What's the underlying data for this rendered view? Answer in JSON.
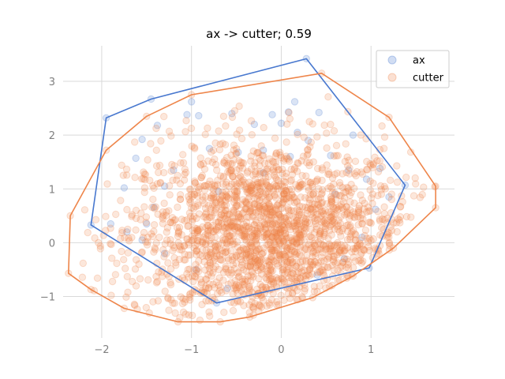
{
  "chart_data": {
    "type": "scatter",
    "title": "ax -> cutter; 0.59",
    "xlabel": "",
    "ylabel": "",
    "xlim": [
      -2.43,
      1.93
    ],
    "ylim": [
      -1.77,
      3.66
    ],
    "x_ticks": [
      -2,
      -1,
      0,
      1
    ],
    "y_ticks": [
      -1,
      0,
      1,
      2,
      3
    ],
    "x_tick_labels": [
      "−2",
      "−1",
      "0",
      "1"
    ],
    "y_tick_labels": [
      "−1",
      "0",
      "1",
      "2",
      "3"
    ],
    "grid": true,
    "legend_position": "top-right",
    "series": [
      {
        "name": "ax",
        "color": "#4878cf",
        "point_alpha": 0.2,
        "hull": [
          [
            -2.12,
            0.33
          ],
          [
            -1.95,
            2.32
          ],
          [
            -1.45,
            2.67
          ],
          [
            0.28,
            3.42
          ],
          [
            1.38,
            1.07
          ],
          [
            0.98,
            -0.47
          ],
          [
            -0.72,
            -1.12
          ]
        ],
        "points": [
          [
            -1.95,
            2.32
          ],
          [
            -1.45,
            2.67
          ],
          [
            0.28,
            3.42
          ],
          [
            1.38,
            1.07
          ],
          [
            0.98,
            -0.47
          ],
          [
            -2.12,
            0.33
          ],
          [
            -0.72,
            -1.12
          ],
          [
            -1.0,
            2.62
          ],
          [
            0.15,
            2.62
          ],
          [
            0.42,
            2.42
          ],
          [
            0.08,
            2.43
          ],
          [
            -1.38,
            2.18
          ],
          [
            -1.55,
            1.92
          ],
          [
            -1.05,
            2.38
          ],
          [
            -0.92,
            2.36
          ],
          [
            -0.1,
            2.38
          ],
          [
            0.0,
            2.22
          ],
          [
            0.18,
            2.05
          ],
          [
            -1.62,
            1.57
          ],
          [
            -1.75,
            1.02
          ],
          [
            -1.42,
            0.66
          ],
          [
            -1.2,
            1.35
          ],
          [
            -0.48,
            1.68
          ],
          [
            0.3,
            1.9
          ],
          [
            0.55,
            1.62
          ],
          [
            0.75,
            1.35
          ],
          [
            0.95,
            1.18
          ],
          [
            1.2,
            0.85
          ],
          [
            1.05,
            0.62
          ],
          [
            -0.3,
            2.2
          ],
          [
            -0.55,
            2.4
          ],
          [
            -1.9,
            0.35
          ],
          [
            -1.72,
            0.2
          ],
          [
            -1.55,
            0.05
          ],
          [
            -1.3,
            -0.2
          ],
          [
            -0.95,
            -0.5
          ],
          [
            -0.6,
            -0.85
          ],
          [
            0.4,
            -0.6
          ],
          [
            0.7,
            -0.3
          ],
          [
            0.9,
            0.1
          ],
          [
            1.1,
            1.38
          ],
          [
            -0.8,
            1.75
          ],
          [
            -0.2,
            1.3
          ],
          [
            0.1,
            1.6
          ],
          [
            -1.3,
            1.05
          ],
          [
            0.6,
            0.9
          ],
          [
            -0.2,
            1.72
          ],
          [
            0.8,
            2.0
          ],
          [
            -1.5,
            0.35
          ],
          [
            -0.7,
            0.95
          ]
        ]
      },
      {
        "name": "cutter",
        "color": "#ee854a",
        "point_alpha": 0.2,
        "hull": [
          [
            -2.35,
            0.5
          ],
          [
            -2.37,
            -0.57
          ],
          [
            -2.12,
            -0.87
          ],
          [
            -1.75,
            -1.22
          ],
          [
            -1.15,
            -1.47
          ],
          [
            -0.68,
            -1.47
          ],
          [
            -0.35,
            -1.38
          ],
          [
            0.35,
            -1.02
          ],
          [
            0.8,
            -0.62
          ],
          [
            1.25,
            -0.1
          ],
          [
            1.72,
            0.65
          ],
          [
            1.72,
            1.05
          ],
          [
            1.2,
            2.33
          ],
          [
            0.45,
            3.15
          ],
          [
            -1.0,
            2.75
          ],
          [
            -1.5,
            2.35
          ],
          [
            -1.95,
            1.72
          ]
        ],
        "point_count": 2000,
        "center": [
          -0.15,
          0.15
        ],
        "spread": [
          0.78,
          0.88
        ],
        "extreme_points": [
          [
            -2.35,
            0.5
          ],
          [
            -2.37,
            -0.57
          ],
          [
            -2.12,
            -0.87
          ],
          [
            -1.75,
            -1.22
          ],
          [
            -1.15,
            -1.47
          ],
          [
            -0.68,
            -1.47
          ],
          [
            -0.35,
            -1.38
          ],
          [
            0.35,
            -1.02
          ],
          [
            0.8,
            -0.62
          ],
          [
            1.25,
            -0.1
          ],
          [
            1.72,
            0.65
          ],
          [
            1.72,
            1.05
          ],
          [
            1.2,
            2.33
          ],
          [
            0.45,
            3.15
          ],
          [
            -1.0,
            2.75
          ],
          [
            -1.5,
            2.35
          ],
          [
            -1.95,
            1.72
          ]
        ]
      }
    ]
  }
}
